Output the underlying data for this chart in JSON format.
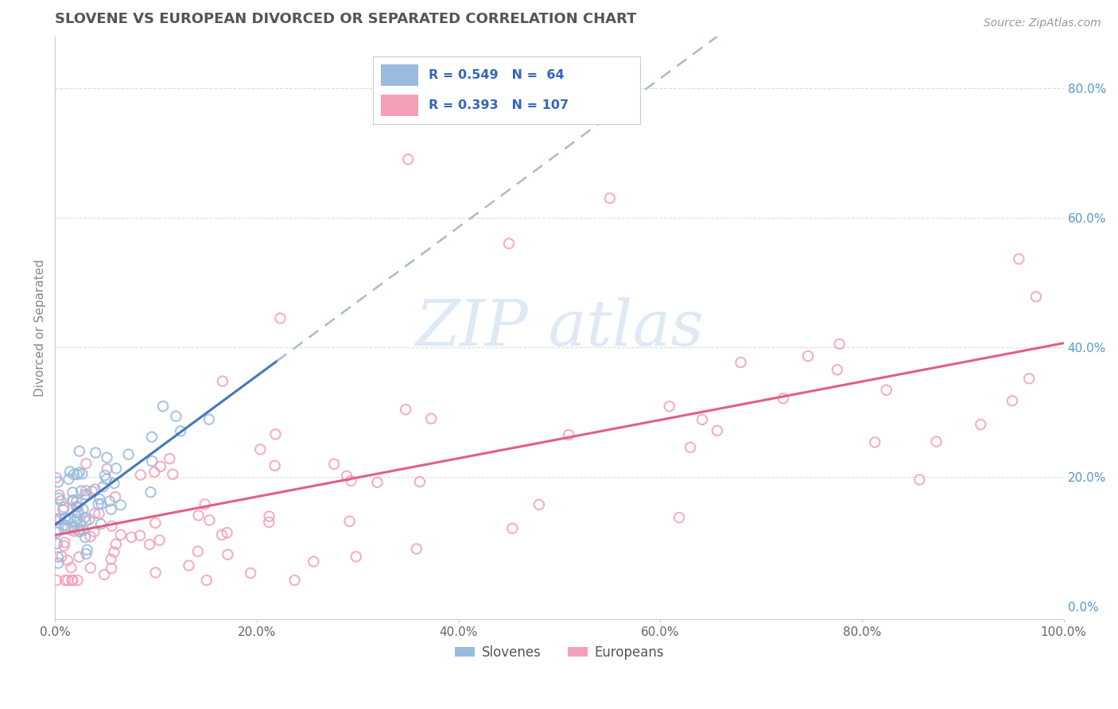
{
  "title": "SLOVENE VS EUROPEAN DIVORCED OR SEPARATED CORRELATION CHART",
  "source": "Source: ZipAtlas.com",
  "ylabel": "Divorced or Separated",
  "xlim": [
    0.0,
    1.0
  ],
  "ylim": [
    -0.02,
    0.88
  ],
  "x_ticks": [
    0.0,
    0.2,
    0.4,
    0.6,
    0.8,
    1.0
  ],
  "x_tick_labels": [
    "0.0%",
    "20.0%",
    "40.0%",
    "60.0%",
    "80.0%",
    "100.0%"
  ],
  "y_ticks": [
    0.0,
    0.2,
    0.4,
    0.6,
    0.8
  ],
  "y_tick_labels": [
    "0.0%",
    "20.0%",
    "40.0%",
    "60.0%",
    "80.0%"
  ],
  "slovene_color": "#99bbdd",
  "european_color": "#f4a0b8",
  "slovene_R": 0.549,
  "slovene_N": 64,
  "european_R": 0.393,
  "european_N": 107,
  "trend_color_slovene": "#4477bb",
  "trend_color_european": "#e06080",
  "legend_slovenes": "Slovenes",
  "legend_europeans": "Europeans",
  "grid_color": "#dddddd",
  "tick_color": "#5599cc",
  "right_tick_color": "#5599cc",
  "title_color": "#555555",
  "source_color": "#999999",
  "ylabel_color": "#888888"
}
